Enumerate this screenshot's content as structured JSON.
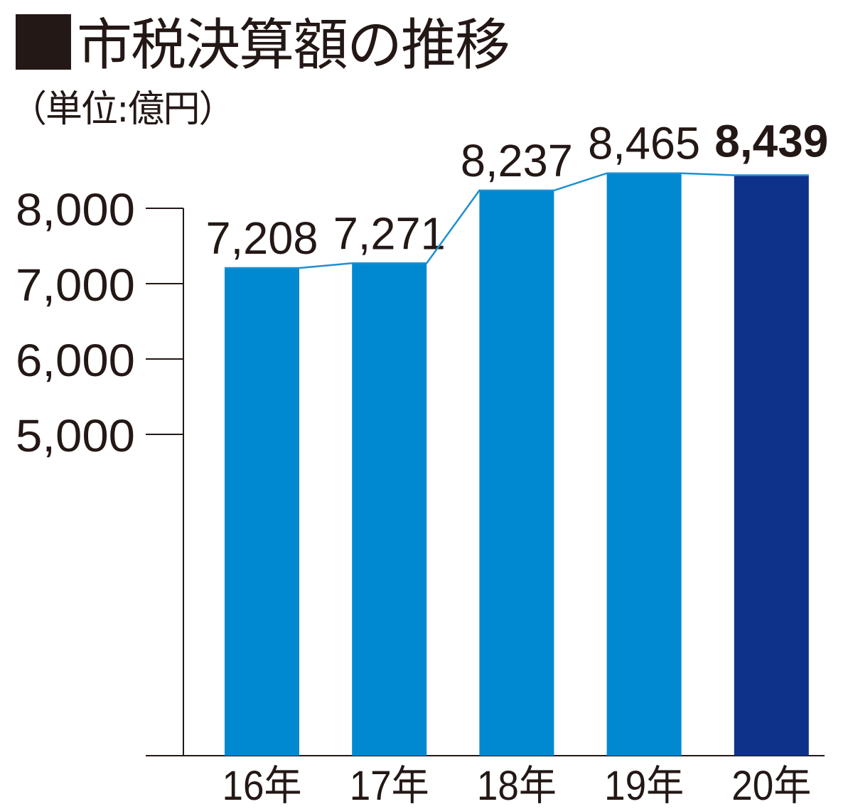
{
  "chart_data": {
    "type": "bar",
    "title": "市税決算額の推移",
    "subtitle": "（単位:億円）",
    "categories": [
      "16年",
      "17年",
      "18年",
      "19年",
      "20年"
    ],
    "values": [
      7208,
      7271,
      8237,
      8465,
      8439
    ],
    "value_labels": [
      "7,208",
      "7,271",
      "8,237",
      "8,465",
      "8,439"
    ],
    "highlight_index": 4,
    "yticks": [
      8000,
      7000,
      6000,
      5000
    ],
    "ytick_labels": [
      "8,000",
      "7,000",
      "6,000",
      "5,000"
    ],
    "ylim": [
      5000,
      8000
    ],
    "axis_break_below": 5000,
    "connector_line": true,
    "grid": false,
    "colors": {
      "bar": "#0089d1",
      "highlight": "#0e318a",
      "line": "#1e8fd0",
      "text": "#231815"
    }
  }
}
